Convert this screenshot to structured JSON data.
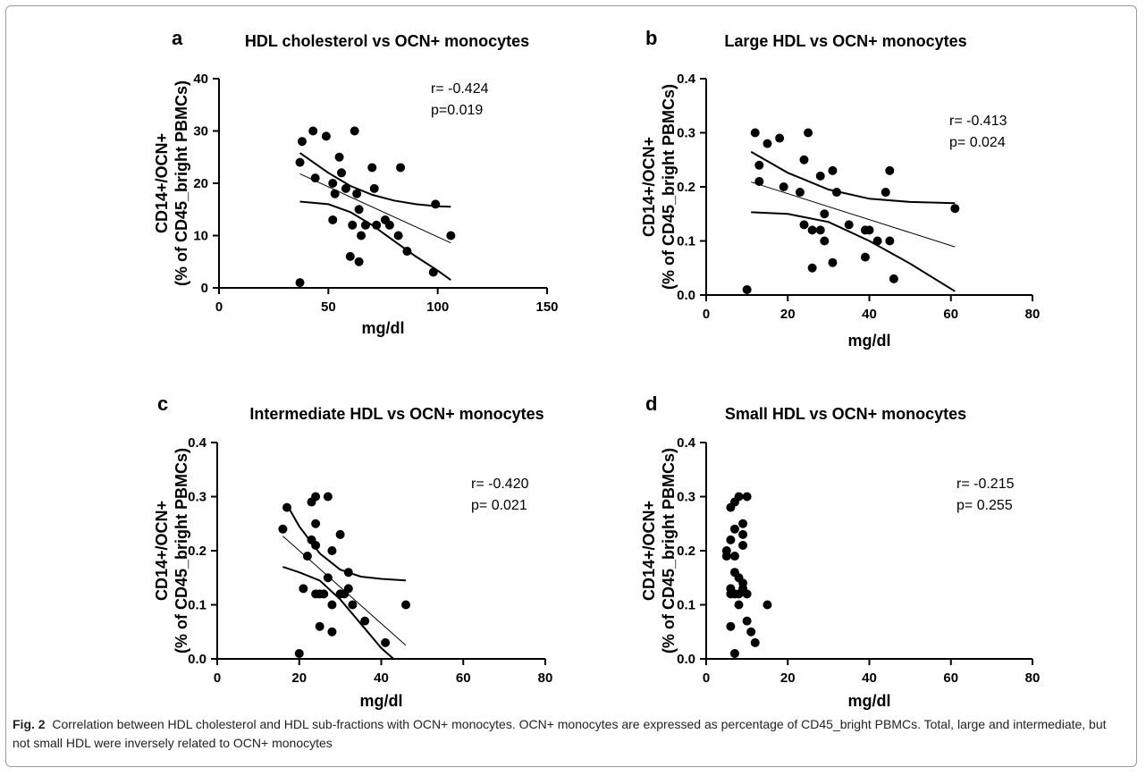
{
  "chart_data": [
    {
      "type": "scatter",
      "panel": "a",
      "title": "HDL cholesterol vs OCN+ monocytes",
      "xlabel": "mg/dl",
      "ylabel_line1": "CD14+/OCN+",
      "ylabel_line2": "(% of CD45_bright PBMCs)",
      "xlim": [
        0,
        150
      ],
      "ylim": [
        0,
        40
      ],
      "xticks": [
        "0",
        "50",
        "100",
        "150"
      ],
      "yticks": [
        "0",
        "10",
        "20",
        "30",
        "40"
      ],
      "stats": [
        "r= -0.424",
        "p=0.019"
      ],
      "points": [
        [
          37,
          24
        ],
        [
          38,
          28
        ],
        [
          37,
          1
        ],
        [
          43,
          30
        ],
        [
          44,
          21
        ],
        [
          49,
          29
        ],
        [
          52,
          20
        ],
        [
          52,
          13
        ],
        [
          53,
          18
        ],
        [
          55,
          25
        ],
        [
          56,
          22
        ],
        [
          58,
          19
        ],
        [
          60,
          6
        ],
        [
          61,
          12
        ],
        [
          62,
          30
        ],
        [
          63,
          18
        ],
        [
          64,
          5
        ],
        [
          64,
          15
        ],
        [
          65,
          10
        ],
        [
          67,
          12
        ],
        [
          70,
          23
        ],
        [
          71,
          19
        ],
        [
          72,
          12
        ],
        [
          76,
          13
        ],
        [
          78,
          12
        ],
        [
          82,
          10
        ],
        [
          83,
          23
        ],
        [
          86,
          7
        ],
        [
          98,
          3
        ],
        [
          99,
          16
        ],
        [
          106,
          10
        ]
      ],
      "fit": [
        [
          37,
          21.8
        ],
        [
          106,
          8.6
        ]
      ],
      "ci_upper": [
        [
          37,
          25.8
        ],
        [
          50,
          22.0
        ],
        [
          60,
          19.5
        ],
        [
          70,
          17.8
        ],
        [
          80,
          16.7
        ],
        [
          90,
          16.0
        ],
        [
          100,
          15.6
        ],
        [
          106,
          15.5
        ]
      ],
      "ci_lower": [
        [
          37,
          16.5
        ],
        [
          50,
          16.0
        ],
        [
          60,
          14.5
        ],
        [
          70,
          12.0
        ],
        [
          80,
          9.0
        ],
        [
          90,
          6.0
        ],
        [
          100,
          3.3
        ],
        [
          106,
          1.5
        ]
      ]
    },
    {
      "type": "scatter",
      "panel": "b",
      "title": "Large HDL vs OCN+ monocytes",
      "xlabel": "mg/dl",
      "ylabel_line1": "CD14+/OCN+",
      "ylabel_line2": "(% of CD45_bright PBMCs)",
      "xlim": [
        0,
        80
      ],
      "ylim": [
        0,
        0.4
      ],
      "xticks": [
        "0",
        "20",
        "40",
        "60",
        "80"
      ],
      "yticks": [
        "0.0",
        "0.1",
        "0.2",
        "0.3",
        "0.4"
      ],
      "stats": [
        "r= -0.413",
        "p= 0.024"
      ],
      "points": [
        [
          10,
          0.01
        ],
        [
          12,
          0.3
        ],
        [
          13,
          0.24
        ],
        [
          13,
          0.21
        ],
        [
          15,
          0.28
        ],
        [
          18,
          0.29
        ],
        [
          19,
          0.2
        ],
        [
          23,
          0.19
        ],
        [
          24,
          0.25
        ],
        [
          24,
          0.13
        ],
        [
          25,
          0.3
        ],
        [
          26,
          0.12
        ],
        [
          26,
          0.05
        ],
        [
          28,
          0.22
        ],
        [
          28,
          0.12
        ],
        [
          29,
          0.1
        ],
        [
          29,
          0.15
        ],
        [
          31,
          0.23
        ],
        [
          31,
          0.06
        ],
        [
          32,
          0.19
        ],
        [
          35,
          0.13
        ],
        [
          39,
          0.07
        ],
        [
          39,
          0.12
        ],
        [
          40,
          0.12
        ],
        [
          42,
          0.1
        ],
        [
          44,
          0.19
        ],
        [
          45,
          0.23
        ],
        [
          45,
          0.1
        ],
        [
          46,
          0.03
        ],
        [
          61,
          0.16
        ]
      ],
      "fit": [
        [
          11,
          0.209
        ],
        [
          61,
          0.089
        ]
      ],
      "ci_upper": [
        [
          11,
          0.265
        ],
        [
          20,
          0.226
        ],
        [
          30,
          0.195
        ],
        [
          40,
          0.178
        ],
        [
          50,
          0.172
        ],
        [
          61,
          0.17
        ]
      ],
      "ci_lower": [
        [
          11,
          0.153
        ],
        [
          20,
          0.15
        ],
        [
          30,
          0.135
        ],
        [
          40,
          0.1
        ],
        [
          50,
          0.058
        ],
        [
          61,
          0.007
        ]
      ]
    },
    {
      "type": "scatter",
      "panel": "c",
      "title": "Intermediate HDL vs OCN+ monocytes",
      "xlabel": "mg/dl",
      "ylabel_line1": "CD14+/OCN+",
      "ylabel_line2": "(% of CD45_bright PBMCs)",
      "xlim": [
        0,
        80
      ],
      "ylim": [
        0,
        0.4
      ],
      "xticks": [
        "0",
        "20",
        "40",
        "60",
        "80"
      ],
      "yticks": [
        "0.0",
        "0.1",
        "0.2",
        "0.3",
        "0.4"
      ],
      "stats": [
        "r= -0.420",
        "p= 0.021"
      ],
      "points": [
        [
          16,
          0.24
        ],
        [
          17,
          0.28
        ],
        [
          20,
          0.01
        ],
        [
          21,
          0.13
        ],
        [
          22,
          0.19
        ],
        [
          23,
          0.22
        ],
        [
          23,
          0.29
        ],
        [
          24,
          0.12
        ],
        [
          24,
          0.3
        ],
        [
          24,
          0.25
        ],
        [
          24,
          0.21
        ],
        [
          25,
          0.06
        ],
        [
          25,
          0.12
        ],
        [
          26,
          0.12
        ],
        [
          27,
          0.3
        ],
        [
          27,
          0.15
        ],
        [
          28,
          0.2
        ],
        [
          28,
          0.05
        ],
        [
          28,
          0.1
        ],
        [
          30,
          0.23
        ],
        [
          30,
          0.12
        ],
        [
          31,
          0.12
        ],
        [
          32,
          0.13
        ],
        [
          32,
          0.16
        ],
        [
          33,
          0.1
        ],
        [
          36,
          0.07
        ],
        [
          41,
          0.03
        ],
        [
          46,
          0.1
        ]
      ],
      "fit": [
        [
          16,
          0.227
        ],
        [
          46,
          0.025
        ]
      ],
      "ci_upper": [
        [
          17,
          0.285
        ],
        [
          20,
          0.245
        ],
        [
          25,
          0.195
        ],
        [
          30,
          0.165
        ],
        [
          35,
          0.152
        ],
        [
          40,
          0.148
        ],
        [
          46,
          0.145
        ]
      ],
      "ci_lower": [
        [
          16,
          0.17
        ],
        [
          20,
          0.16
        ],
        [
          25,
          0.145
        ],
        [
          30,
          0.11
        ],
        [
          35,
          0.065
        ],
        [
          40,
          0.02
        ],
        [
          43,
          0.0
        ]
      ]
    },
    {
      "type": "scatter",
      "panel": "d",
      "title": "Small HDL vs OCN+ monocytes",
      "xlabel": "mg/dl",
      "ylabel_line1": "CD14+/OCN+",
      "ylabel_line2": "(% of CD45_bright PBMCs)",
      "xlim": [
        0,
        80
      ],
      "ylim": [
        0,
        0.4
      ],
      "xticks": [
        "0",
        "20",
        "40",
        "60",
        "80"
      ],
      "yticks": [
        "0.0",
        "0.1",
        "0.2",
        "0.3",
        "0.4"
      ],
      "stats": [
        "r= -0.215",
        "p= 0.255"
      ],
      "points": [
        [
          5,
          0.2
        ],
        [
          5,
          0.19
        ],
        [
          6,
          0.22
        ],
        [
          6,
          0.28
        ],
        [
          6,
          0.13
        ],
        [
          6,
          0.12
        ],
        [
          6,
          0.06
        ],
        [
          7,
          0.29
        ],
        [
          7,
          0.19
        ],
        [
          7,
          0.16
        ],
        [
          7,
          0.12
        ],
        [
          7,
          0.24
        ],
        [
          7,
          0.01
        ],
        [
          8,
          0.3
        ],
        [
          8,
          0.15
        ],
        [
          8,
          0.12
        ],
        [
          8,
          0.1
        ],
        [
          9,
          0.25
        ],
        [
          9,
          0.23
        ],
        [
          9,
          0.21
        ],
        [
          9,
          0.13
        ],
        [
          9,
          0.14
        ],
        [
          10,
          0.3
        ],
        [
          10,
          0.12
        ],
        [
          10,
          0.07
        ],
        [
          11,
          0.05
        ],
        [
          12,
          0.03
        ],
        [
          15,
          0.1
        ]
      ],
      "fit": null,
      "ci_upper": null,
      "ci_lower": null
    }
  ],
  "caption": {
    "label": "Fig. 2",
    "text": "Correlation between HDL cholesterol and HDL sub-fractions with OCN+ monocytes. OCN+ monocytes are expressed as percentage of CD45_bright PBMCs. Total, large and intermediate, but not small HDL were inversely related to OCN+ monocytes"
  }
}
